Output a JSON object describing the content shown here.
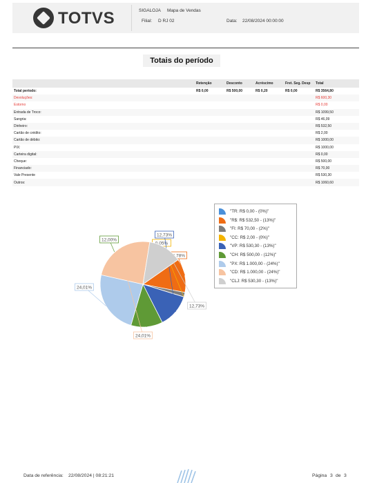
{
  "header": {
    "logo_text": "TOTVS",
    "module": "SIGALOJA",
    "report_name": "Mapa de Vendas",
    "filial_label": "Filial:",
    "filial_value": "D RJ 02",
    "data_label": "Data:",
    "data_value": "22/08/2024 00:00:00"
  },
  "title": "Totais do período",
  "table": {
    "columns": [
      "",
      "Retenção",
      "Desconto",
      "Acréscimo",
      "Fret. Seg. Desp",
      "Total"
    ],
    "rows": [
      {
        "label": "Total período:",
        "retencao": "R$ 0,00",
        "desconto": "R$ 500,00",
        "acrescimo": "R$ 0,20",
        "fret": "R$ 0,00",
        "total": "R$ 3564,80",
        "bold": true
      },
      {
        "label": "Devoluções:",
        "total": "R$ 600,30",
        "red": true
      },
      {
        "label": "Estorno",
        "total": "R$ 0,00",
        "red": true
      },
      {
        "label": "Entrada de Troco:",
        "total": "R$ 1099,50"
      },
      {
        "label": "Sangria:",
        "total": "R$ 46,09"
      },
      {
        "label": "Dinheiro:",
        "total": "R$ 532,50"
      },
      {
        "label": "Cartão de crédito:",
        "total": "R$ 2,00"
      },
      {
        "label": "Cartão de débito:",
        "total": "R$ 1000,00"
      },
      {
        "label": "PIX:",
        "total": "R$ 1000,00"
      },
      {
        "label": "Carteira digital:",
        "total": "R$ 0,00"
      },
      {
        "label": "Cheque:",
        "total": "R$ 500,00"
      },
      {
        "label": "Financiado:",
        "total": "R$ 70,00"
      },
      {
        "label": "Vale Presente",
        "total": "R$ 530,30"
      },
      {
        "label": "Outros:",
        "total": "R$ 1060,60"
      }
    ]
  },
  "chart_data": {
    "type": "pie",
    "slices": [
      {
        "legend": "\"TR: R$ 0,00 - (0%)\"",
        "value": 0,
        "color": "#4a90d9"
      },
      {
        "legend": "\"R$: R$ 532,50 - (13%)\"",
        "value": 532.5,
        "label": "12,78%",
        "color": "#ef6c14"
      },
      {
        "legend": "\"FI: R$ 70,00 - (2%)\"",
        "value": 70,
        "color": "#7d7d7d"
      },
      {
        "legend": "\"CC: R$ 2,00 - (0%)\"",
        "value": 2,
        "label": "0,05%",
        "color": "#f4b400"
      },
      {
        "legend": "\"VP: R$ 530,30 - (13%)\"",
        "value": 530.3,
        "label": "12,73%",
        "color": "#3a62b6"
      },
      {
        "legend": "\"CH: R$ 500,00 - (12%)\"",
        "value": 500,
        "label": "12,00%",
        "color": "#5f9a36"
      },
      {
        "legend": "\"PX: R$ 1.000,00 - (24%)\"",
        "value": 1000,
        "label": "24,01%",
        "color": "#aecbeb"
      },
      {
        "legend": "\"CD: R$ 1.000,00 - (24%)\"",
        "value": 1000,
        "label": "24,01%",
        "color": "#f7c4a1"
      },
      {
        "legend": "\"CLJ: R$ 530,30 - (13%)\"",
        "value": 530.3,
        "label": "12,73%",
        "color": "#cfcfcf"
      }
    ],
    "legend_position": "right"
  },
  "footer": {
    "ref_label": "Data de referência:",
    "ref_value": "22/08/2024 | 08:21:21",
    "page_label": "Página",
    "page_current": "3",
    "page_sep": "de",
    "page_total": "3"
  }
}
